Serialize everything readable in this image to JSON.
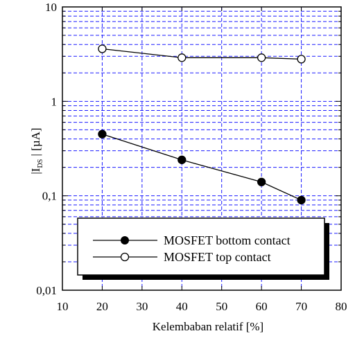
{
  "chart_data": {
    "type": "line",
    "xlabel": "Kelembaban relatif [%]",
    "ylabel": {
      "prefix": "|I",
      "subscript": "DS",
      "suffix": " | [µA]"
    },
    "xlim": [
      10,
      80
    ],
    "ylim": [
      0.01,
      10
    ],
    "yscale": "log",
    "x_ticks": [
      10,
      20,
      30,
      40,
      50,
      60,
      70,
      80
    ],
    "y_ticks": [
      {
        "value": 0.01,
        "label": "0,01"
      },
      {
        "value": 0.1,
        "label": "0,1"
      },
      {
        "value": 1,
        "label": "1"
      },
      {
        "value": 10,
        "label": "10"
      }
    ],
    "grid": true,
    "grid_color": "#1a1aff",
    "legend_position": "bottom-center",
    "series": [
      {
        "name": "MOSFET bottom contact",
        "marker": "filled-circle",
        "x": [
          20,
          40,
          60,
          70
        ],
        "y": [
          0.45,
          0.24,
          0.14,
          0.09
        ]
      },
      {
        "name": "MOSFET top contact",
        "marker": "open-circle",
        "x": [
          20,
          40,
          60,
          70
        ],
        "y": [
          3.6,
          2.9,
          2.9,
          2.8
        ]
      }
    ]
  }
}
